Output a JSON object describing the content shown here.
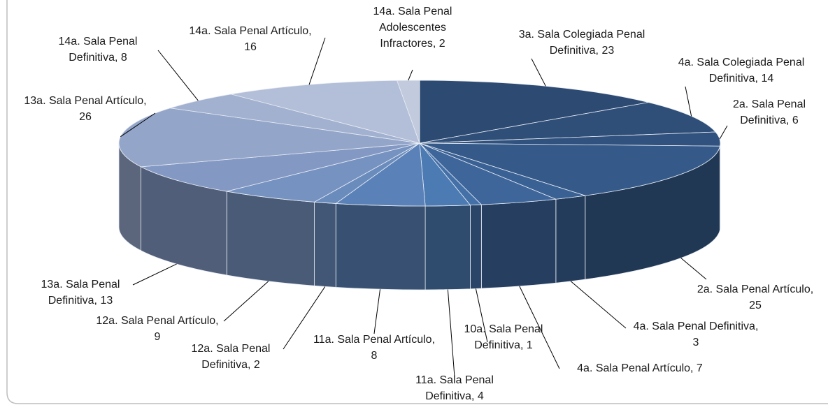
{
  "chart_data": {
    "type": "pie3d",
    "labels": [
      [
        "3a. Sala Colegiada Penal",
        "Definitiva, 23"
      ],
      [
        "4a. Sala Colegiada Penal",
        "Definitiva, 14"
      ],
      [
        "2a. Sala Penal",
        "Definitiva, 6"
      ],
      [
        "2a. Sala Penal Artículo,",
        "25"
      ],
      [
        "4a. Sala Penal Definitiva,",
        "3"
      ],
      [
        "4a. Sala Penal Artículo, 7"
      ],
      [
        "10a. Sala Penal",
        "Definitiva, 1"
      ],
      [
        "11a. Sala Penal",
        "Definitiva, 4"
      ],
      [
        "11a. Sala Penal Artículo,",
        "8"
      ],
      [
        "12a. Sala Penal",
        "Definitiva, 2"
      ],
      [
        "12a. Sala Penal Artículo,",
        "9"
      ],
      [
        "13a. Sala Penal",
        "Definitiva, 13"
      ],
      [
        "13a. Sala Penal Artículo,",
        "26"
      ],
      [
        "14a. Sala Penal",
        "Definitiva, 8"
      ],
      [
        "14a. Sala Penal Artículo,",
        "16"
      ],
      [
        "14a. Sala Penal",
        "Adolescentes",
        "Infractores, 2"
      ]
    ],
    "values": [
      23,
      14,
      6,
      25,
      3,
      7,
      1,
      4,
      8,
      2,
      9,
      13,
      26,
      8,
      16,
      2
    ],
    "colors": [
      "#2d4a72",
      "#2f4e78",
      "#31527e",
      "#355a89",
      "#3a6194",
      "#3e669b",
      "#4470a8",
      "#4c7bb3",
      "#5a82b8",
      "#6a8cbd",
      "#7592c0",
      "#8398c3",
      "#93a5c9",
      "#a3b1d0",
      "#b3bfd8",
      "#c2cbde"
    ]
  }
}
